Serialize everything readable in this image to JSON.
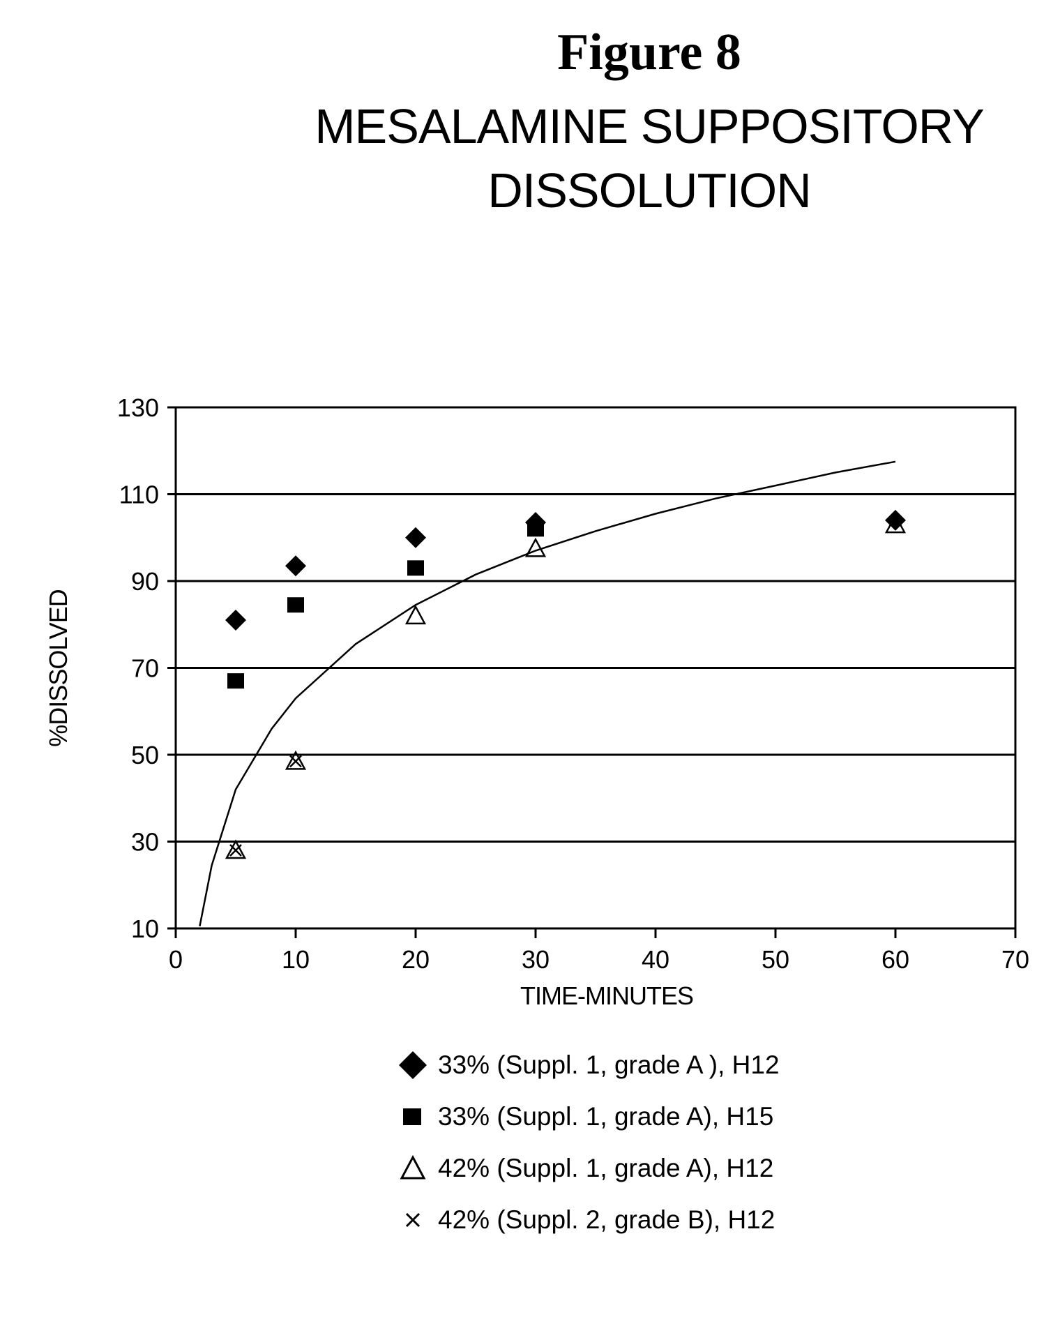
{
  "figure_label": "Figure 8",
  "title_lines": [
    "MESALAMINE SUPPOSITORY",
    "DISSOLUTION"
  ],
  "chart_data": {
    "type": "scatter",
    "title": "MESALAMINE SUPPOSITORY DISSOLUTION",
    "xlabel": "TIME-MINUTES",
    "ylabel": "%DISSOLVED",
    "xlim": [
      0,
      70
    ],
    "ylim": [
      10,
      130
    ],
    "xticks": [
      0,
      10,
      20,
      30,
      40,
      50,
      60,
      70
    ],
    "yticks": [
      10,
      30,
      50,
      70,
      90,
      110,
      130
    ],
    "grid": "horizontal",
    "legend_position": "bottom",
    "series": [
      {
        "name": "33% (Suppl. 1, grade A ), H12",
        "marker": "diamond-filled",
        "x": [
          5,
          10,
          20,
          30,
          60
        ],
        "y": [
          81,
          93.5,
          100,
          103.5,
          104
        ]
      },
      {
        "name": "33% (Suppl. 1, grade A), H15",
        "marker": "square-filled",
        "x": [
          5,
          10,
          20,
          30
        ],
        "y": [
          67,
          84.5,
          93,
          102
        ]
      },
      {
        "name": "42% (Suppl. 1, grade A), H12",
        "marker": "triangle-open",
        "x": [
          5,
          10,
          20,
          30,
          60
        ],
        "y": [
          28,
          48.5,
          82,
          97.5,
          103
        ]
      },
      {
        "name": "42% (Suppl. 2, grade B), H12",
        "marker": "x",
        "x": [
          5,
          10
        ],
        "y": [
          28,
          48.5
        ]
      }
    ],
    "trendline": {
      "type": "logarithmic",
      "x_range": [
        2,
        60
      ],
      "x": [
        2,
        3,
        5,
        8,
        10,
        15,
        20,
        25,
        30,
        35,
        40,
        45,
        50,
        55,
        60
      ],
      "y": [
        10.5,
        24.5,
        42,
        56,
        63,
        75.5,
        84.5,
        91.5,
        97,
        101.5,
        105.5,
        109,
        112,
        115,
        117.5
      ]
    }
  }
}
